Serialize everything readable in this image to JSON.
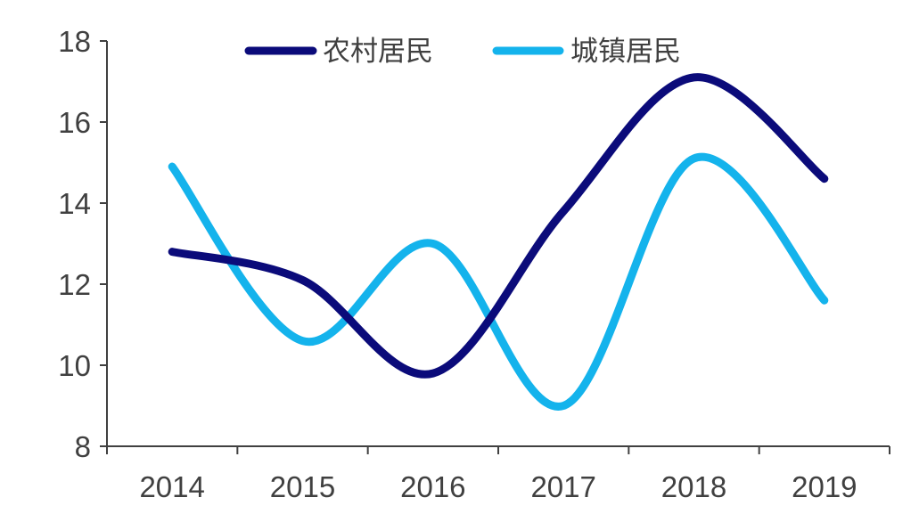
{
  "chart_data": {
    "type": "line",
    "categories": [
      "2014",
      "2015",
      "2016",
      "2017",
      "2018",
      "2019"
    ],
    "series": [
      {
        "name": "农村居民",
        "color": "#0b0b7a",
        "values": [
          12.8,
          12.1,
          9.8,
          13.8,
          17.1,
          14.6
        ]
      },
      {
        "name": "城镇居民",
        "color": "#14b3ec",
        "values": [
          14.9,
          10.6,
          13.0,
          9.0,
          15.1,
          11.6
        ]
      }
    ],
    "title": "",
    "xlabel": "",
    "ylabel": "",
    "ylim": [
      8,
      18
    ],
    "yticks": [
      8,
      10,
      12,
      14,
      16,
      18
    ],
    "grid": false,
    "legend": "top",
    "smooth": true
  }
}
